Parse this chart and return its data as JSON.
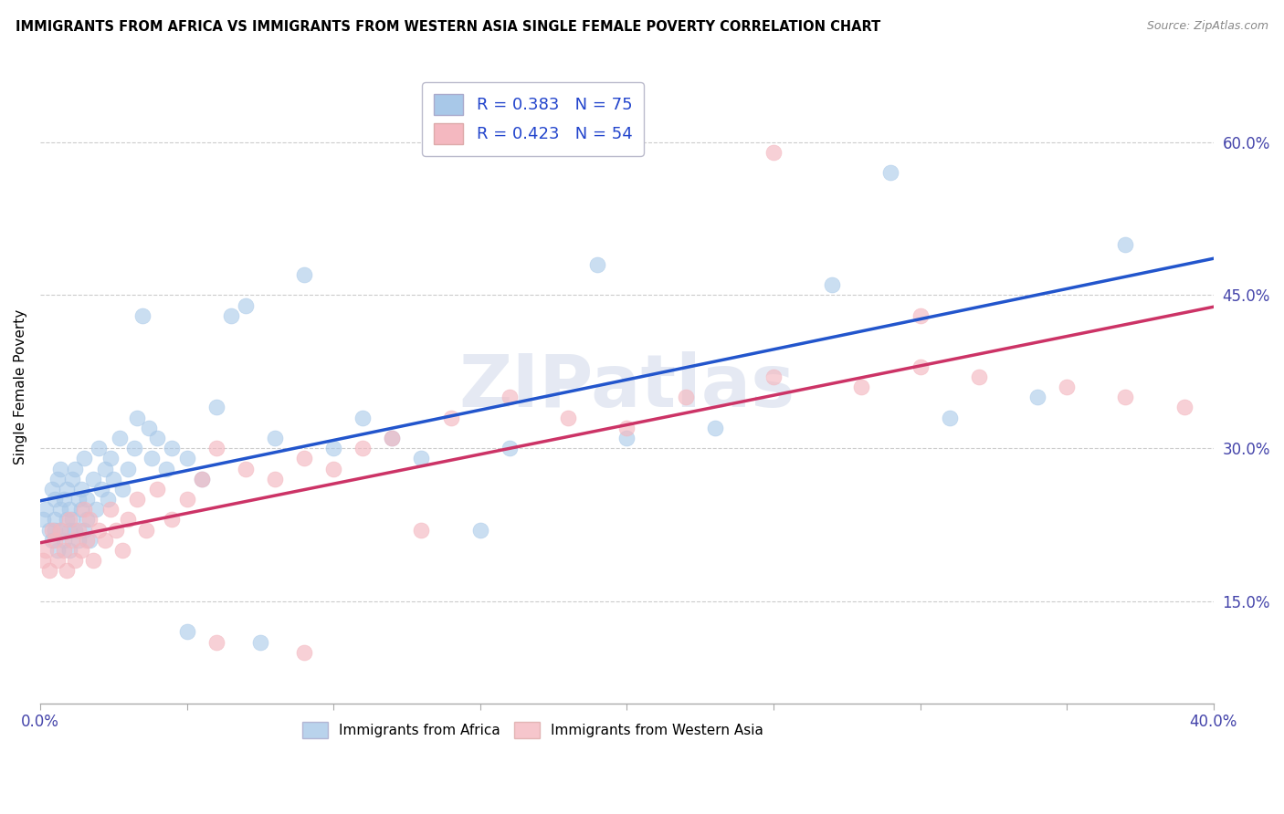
{
  "title": "IMMIGRANTS FROM AFRICA VS IMMIGRANTS FROM WESTERN ASIA SINGLE FEMALE POVERTY CORRELATION CHART",
  "source": "Source: ZipAtlas.com",
  "ylabel": "Single Female Poverty",
  "y_ticks": [
    0.15,
    0.3,
    0.45,
    0.6
  ],
  "y_tick_labels": [
    "15.0%",
    "30.0%",
    "45.0%",
    "60.0%"
  ],
  "xlim": [
    0.0,
    0.4
  ],
  "ylim": [
    0.05,
    0.67
  ],
  "legend_r1": "R = 0.383",
  "legend_n1": "N = 75",
  "legend_r2": "R = 0.423",
  "legend_n2": "N = 54",
  "color_africa": "#a8c8e8",
  "color_western_asia": "#f4b8c0",
  "color_line_africa": "#2255cc",
  "color_line_western_asia": "#cc3366",
  "watermark": "ZIPatlas",
  "watermark_color": "#ccd5e8",
  "africa_x": [
    0.001,
    0.002,
    0.003,
    0.004,
    0.004,
    0.005,
    0.005,
    0.005,
    0.006,
    0.006,
    0.007,
    0.007,
    0.007,
    0.008,
    0.008,
    0.009,
    0.009,
    0.01,
    0.01,
    0.01,
    0.011,
    0.011,
    0.012,
    0.012,
    0.013,
    0.013,
    0.014,
    0.014,
    0.015,
    0.015,
    0.016,
    0.016,
    0.017,
    0.018,
    0.019,
    0.02,
    0.021,
    0.022,
    0.023,
    0.024,
    0.025,
    0.027,
    0.028,
    0.03,
    0.032,
    0.033,
    0.035,
    0.037,
    0.038,
    0.04,
    0.043,
    0.045,
    0.05,
    0.055,
    0.06,
    0.065,
    0.07,
    0.08,
    0.09,
    0.1,
    0.11,
    0.13,
    0.16,
    0.19,
    0.23,
    0.27,
    0.29,
    0.31,
    0.34,
    0.37,
    0.05,
    0.075,
    0.12,
    0.15,
    0.2
  ],
  "africa_y": [
    0.23,
    0.24,
    0.22,
    0.26,
    0.21,
    0.25,
    0.22,
    0.23,
    0.2,
    0.27,
    0.24,
    0.22,
    0.28,
    0.21,
    0.25,
    0.23,
    0.26,
    0.22,
    0.24,
    0.2,
    0.27,
    0.23,
    0.22,
    0.28,
    0.25,
    0.21,
    0.24,
    0.26,
    0.22,
    0.29,
    0.23,
    0.25,
    0.21,
    0.27,
    0.24,
    0.3,
    0.26,
    0.28,
    0.25,
    0.29,
    0.27,
    0.31,
    0.26,
    0.28,
    0.3,
    0.33,
    0.43,
    0.32,
    0.29,
    0.31,
    0.28,
    0.3,
    0.29,
    0.27,
    0.34,
    0.43,
    0.44,
    0.31,
    0.47,
    0.3,
    0.33,
    0.29,
    0.3,
    0.48,
    0.32,
    0.46,
    0.57,
    0.33,
    0.35,
    0.5,
    0.12,
    0.11,
    0.31,
    0.22,
    0.31
  ],
  "wasia_x": [
    0.001,
    0.002,
    0.003,
    0.004,
    0.005,
    0.006,
    0.007,
    0.008,
    0.009,
    0.01,
    0.011,
    0.012,
    0.013,
    0.014,
    0.015,
    0.016,
    0.017,
    0.018,
    0.02,
    0.022,
    0.024,
    0.026,
    0.028,
    0.03,
    0.033,
    0.036,
    0.04,
    0.045,
    0.05,
    0.055,
    0.06,
    0.07,
    0.08,
    0.09,
    0.1,
    0.11,
    0.12,
    0.14,
    0.16,
    0.18,
    0.2,
    0.22,
    0.25,
    0.28,
    0.3,
    0.32,
    0.35,
    0.37,
    0.39,
    0.06,
    0.09,
    0.13,
    0.25,
    0.3
  ],
  "wasia_y": [
    0.19,
    0.2,
    0.18,
    0.22,
    0.21,
    0.19,
    0.22,
    0.2,
    0.18,
    0.23,
    0.21,
    0.19,
    0.22,
    0.2,
    0.24,
    0.21,
    0.23,
    0.19,
    0.22,
    0.21,
    0.24,
    0.22,
    0.2,
    0.23,
    0.25,
    0.22,
    0.26,
    0.23,
    0.25,
    0.27,
    0.3,
    0.28,
    0.27,
    0.29,
    0.28,
    0.3,
    0.31,
    0.33,
    0.35,
    0.33,
    0.32,
    0.35,
    0.37,
    0.36,
    0.38,
    0.37,
    0.36,
    0.35,
    0.34,
    0.11,
    0.1,
    0.22,
    0.59,
    0.43
  ]
}
